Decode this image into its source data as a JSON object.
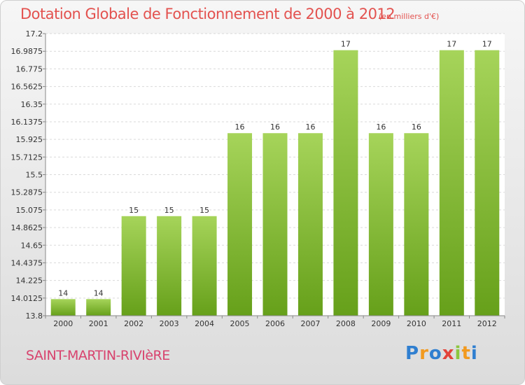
{
  "header": {
    "title": "Dotation Globale de Fonctionnement de 2000 à 2012",
    "unit": "(en milliers d'€)"
  },
  "footer": {
    "commune": "SAINT-MARTIN-RIVIèRE",
    "brand_letters": [
      {
        "ch": "P",
        "color": "#2f7fd0"
      },
      {
        "ch": "r",
        "color": "#f29a1f"
      },
      {
        "ch": "o",
        "color": "#2f7fd0"
      },
      {
        "ch": "x",
        "color": "#e3433a"
      },
      {
        "ch": "i",
        "color": "#8cc63f"
      },
      {
        "ch": "t",
        "color": "#f29a1f"
      },
      {
        "ch": "i",
        "color": "#2f7fd0"
      }
    ]
  },
  "colors": {
    "bar_top": "#a6d45a",
    "bar_bottom": "#66a01a",
    "title": "#e3524f",
    "commune": "#d8436e"
  },
  "chart_data": {
    "type": "bar",
    "title": "Dotation Globale de Fonctionnement de 2000 à 2012",
    "subtitle": "(en milliers d'€)",
    "xlabel": "",
    "ylabel": "",
    "categories": [
      "2000",
      "2001",
      "2002",
      "2003",
      "2004",
      "2005",
      "2006",
      "2007",
      "2008",
      "2009",
      "2010",
      "2011",
      "2012"
    ],
    "values": [
      14,
      14,
      15,
      15,
      15,
      16,
      16,
      16,
      17,
      16,
      16,
      17,
      17
    ],
    "data_labels": [
      "14",
      "14",
      "15",
      "15",
      "15",
      "16",
      "16",
      "16",
      "17",
      "16",
      "16",
      "17",
      "17"
    ],
    "ylim": [
      13.8,
      17.2
    ],
    "yticks": [
      13.8,
      14.0125,
      14.225,
      14.4375,
      14.65,
      14.8625,
      15.075,
      15.2875,
      15.5,
      15.7125,
      15.925,
      16.1375,
      16.35,
      16.5625,
      16.775,
      16.9875,
      17.2
    ],
    "ytick_labels": [
      "13.8",
      "14.0125",
      "14.225",
      "14.4375",
      "14.65",
      "14.8625",
      "15.075",
      "15.2875",
      "15.5",
      "15.7125",
      "15.925",
      "16.1375",
      "16.35",
      "16.5625",
      "16.775",
      "16.9875",
      "17.2"
    ],
    "grid": true,
    "legend": "none"
  }
}
